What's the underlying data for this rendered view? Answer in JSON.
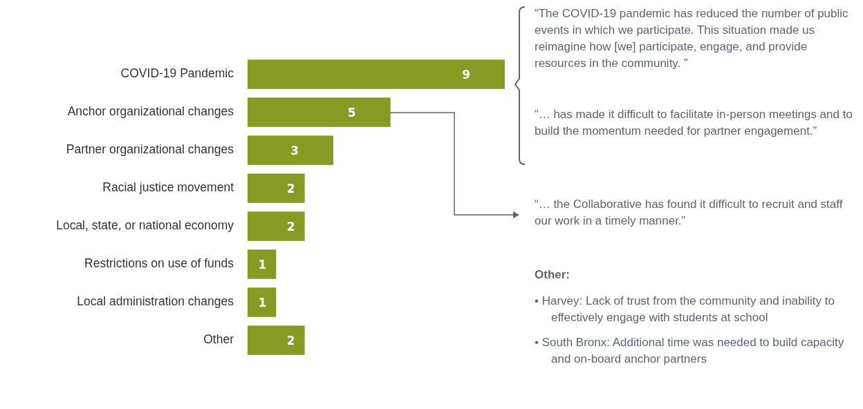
{
  "chart_data": {
    "type": "bar",
    "orientation": "horizontal",
    "tick_labels": "y",
    "categories": [
      "COVID-19 Pandemic",
      "Anchor organizational changes",
      "Partner organizational changes",
      "Racial justice movement",
      "Local, state, or national economy",
      "Restrictions on use of funds",
      "Local administration changes",
      "Other"
    ],
    "values": [
      9,
      5,
      3,
      2,
      2,
      1,
      1,
      2
    ],
    "color": "#879a24",
    "data_labels": true,
    "annotations": [
      "“The COVID-19 pandemic has reduced the number of public events in which we participate. This situation made us reimagine how [we] participate, engage, and provide resources in the community. ”",
      "“… has made it difficult to facilitate in-person meetings and to build the momentum needed for partner engagement.”",
      "“… the Collaborative has found it difficult to recruit and staff our work in a timely manner.”",
      "Other:",
      "• Harvey: Lack of trust from the community and inability to effectively engage with students at school",
      "• South Bronx: Additional time was needed to build capacity and on-board anchor partners"
    ]
  }
}
